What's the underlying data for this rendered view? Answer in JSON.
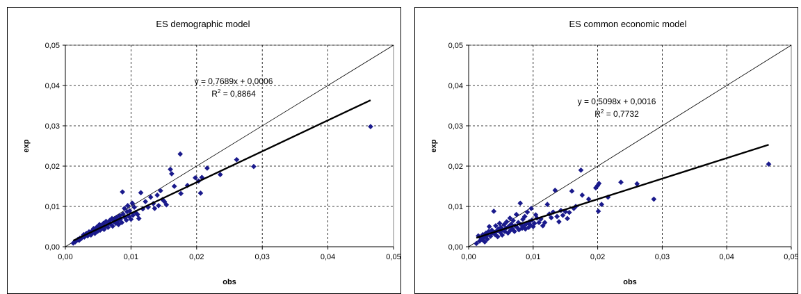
{
  "chart_data": [
    {
      "type": "scatter",
      "title": "ES demographic model",
      "xlabel": "obs",
      "ylabel": "exp",
      "xlim": [
        0,
        0.05
      ],
      "ylim": [
        0,
        0.05
      ],
      "x_ticks": [
        "0,00",
        "0,01",
        "0,02",
        "0,03",
        "0,04",
        "0,05"
      ],
      "y_ticks": [
        "0,00",
        "0,01",
        "0,02",
        "0,03",
        "0,04",
        "0,05"
      ],
      "grid": true,
      "marker_color": "#1a1a8c",
      "reference_line": "y = x",
      "trendline": {
        "slope": 0.7689,
        "intercept": 0.0006,
        "x_range": [
          0.0012,
          0.0465
        ]
      },
      "equation": "y = 0,7689x + 0,0006",
      "r_squared": "R",
      "r_squared_sup": "2",
      "r_squared_value": " = 0,8864",
      "points": [
        [
          0.0012,
          0.0009
        ],
        [
          0.0015,
          0.0012
        ],
        [
          0.0017,
          0.0015
        ],
        [
          0.0019,
          0.0018
        ],
        [
          0.0021,
          0.0016
        ],
        [
          0.0022,
          0.0021
        ],
        [
          0.0024,
          0.002
        ],
        [
          0.0025,
          0.0023
        ],
        [
          0.0027,
          0.0026
        ],
        [
          0.0028,
          0.003
        ],
        [
          0.0029,
          0.0024
        ],
        [
          0.0031,
          0.0028
        ],
        [
          0.0032,
          0.0033
        ],
        [
          0.0034,
          0.0027
        ],
        [
          0.0035,
          0.0031
        ],
        [
          0.0036,
          0.0037
        ],
        [
          0.0038,
          0.0034
        ],
        [
          0.0039,
          0.0029
        ],
        [
          0.0041,
          0.004
        ],
        [
          0.0042,
          0.0036
        ],
        [
          0.0043,
          0.0045
        ],
        [
          0.0045,
          0.0033
        ],
        [
          0.0046,
          0.0042
        ],
        [
          0.0048,
          0.0049
        ],
        [
          0.0049,
          0.0038
        ],
        [
          0.005,
          0.0044
        ],
        [
          0.0052,
          0.0055
        ],
        [
          0.0053,
          0.0041
        ],
        [
          0.0055,
          0.0047
        ],
        [
          0.0056,
          0.0052
        ],
        [
          0.0058,
          0.0058
        ],
        [
          0.0059,
          0.0043
        ],
        [
          0.0061,
          0.005
        ],
        [
          0.0062,
          0.0063
        ],
        [
          0.0064,
          0.0054
        ],
        [
          0.0065,
          0.0048
        ],
        [
          0.0066,
          0.006
        ],
        [
          0.0068,
          0.0066
        ],
        [
          0.0069,
          0.0056
        ],
        [
          0.0071,
          0.007
        ],
        [
          0.0072,
          0.0051
        ],
        [
          0.0074,
          0.0062
        ],
        [
          0.0075,
          0.0068
        ],
        [
          0.0077,
          0.0058
        ],
        [
          0.0078,
          0.0073
        ],
        [
          0.008,
          0.0064
        ],
        [
          0.0081,
          0.0055
        ],
        [
          0.0083,
          0.0077
        ],
        [
          0.0084,
          0.0069
        ],
        [
          0.0086,
          0.006
        ],
        [
          0.0087,
          0.0136
        ],
        [
          0.0088,
          0.0081
        ],
        [
          0.009,
          0.0095
        ],
        [
          0.0091,
          0.0072
        ],
        [
          0.0093,
          0.0066
        ],
        [
          0.0094,
          0.0087
        ],
        [
          0.0095,
          0.0102
        ],
        [
          0.0097,
          0.0075
        ],
        [
          0.0098,
          0.0089
        ],
        [
          0.01,
          0.0068
        ],
        [
          0.0102,
          0.0108
        ],
        [
          0.0103,
          0.0078
        ],
        [
          0.0105,
          0.0098
        ],
        [
          0.0107,
          0.0085
        ],
        [
          0.011,
          0.008
        ],
        [
          0.0112,
          0.007
        ],
        [
          0.0115,
          0.0134
        ],
        [
          0.0118,
          0.0094
        ],
        [
          0.0122,
          0.0112
        ],
        [
          0.0126,
          0.0098
        ],
        [
          0.013,
          0.0123
        ],
        [
          0.0134,
          0.0107
        ],
        [
          0.0136,
          0.0095
        ],
        [
          0.014,
          0.0128
        ],
        [
          0.0142,
          0.0102
        ],
        [
          0.0145,
          0.0139
        ],
        [
          0.0148,
          0.0117
        ],
        [
          0.0151,
          0.0112
        ],
        [
          0.0154,
          0.0104
        ],
        [
          0.016,
          0.0192
        ],
        [
          0.0162,
          0.0181
        ],
        [
          0.0166,
          0.015
        ],
        [
          0.0175,
          0.023
        ],
        [
          0.0176,
          0.0132
        ],
        [
          0.0186,
          0.0152
        ],
        [
          0.0198,
          0.0171
        ],
        [
          0.0203,
          0.0163
        ],
        [
          0.0206,
          0.0133
        ],
        [
          0.0208,
          0.0172
        ],
        [
          0.0216,
          0.0195
        ],
        [
          0.0236,
          0.0179
        ],
        [
          0.0261,
          0.0216
        ],
        [
          0.0287,
          0.0199
        ],
        [
          0.0465,
          0.0298
        ]
      ]
    },
    {
      "type": "scatter",
      "title": "ES common economic model",
      "xlabel": "obs",
      "ylabel": "exp",
      "xlim": [
        0,
        0.05
      ],
      "ylim": [
        0,
        0.05
      ],
      "x_ticks": [
        "0,00",
        "0,01",
        "0,02",
        "0,03",
        "0,04",
        "0,05"
      ],
      "y_ticks": [
        "0,00",
        "0,01",
        "0,02",
        "0,03",
        "0,04",
        "0,05"
      ],
      "grid": true,
      "marker_color": "#1a1a8c",
      "reference_line": "y = x",
      "trendline": {
        "slope": 0.5098,
        "intercept": 0.0016,
        "x_range": [
          0.0012,
          0.0465
        ]
      },
      "equation": "y = 0,5098x + 0,0016",
      "r_squared": "R",
      "r_squared_sup": "2",
      "r_squared_value": " = 0,7732",
      "points": [
        [
          0.0012,
          0.0008
        ],
        [
          0.0015,
          0.0027
        ],
        [
          0.0017,
          0.0014
        ],
        [
          0.0019,
          0.0022
        ],
        [
          0.0021,
          0.0018
        ],
        [
          0.0022,
          0.003
        ],
        [
          0.0024,
          0.0024
        ],
        [
          0.0025,
          0.0012
        ],
        [
          0.0027,
          0.0034
        ],
        [
          0.0028,
          0.0028
        ],
        [
          0.0029,
          0.0019
        ],
        [
          0.0031,
          0.0038
        ],
        [
          0.0032,
          0.005
        ],
        [
          0.0034,
          0.0026
        ],
        [
          0.0035,
          0.0032
        ],
        [
          0.0036,
          0.0041
        ],
        [
          0.0038,
          0.0035
        ],
        [
          0.0039,
          0.0088
        ],
        [
          0.0041,
          0.003
        ],
        [
          0.0042,
          0.0052
        ],
        [
          0.0043,
          0.0038
        ],
        [
          0.0045,
          0.0025
        ],
        [
          0.0046,
          0.0044
        ],
        [
          0.0048,
          0.0058
        ],
        [
          0.0049,
          0.0036
        ],
        [
          0.005,
          0.0048
        ],
        [
          0.0052,
          0.0029
        ],
        [
          0.0053,
          0.0042
        ],
        [
          0.0055,
          0.0055
        ],
        [
          0.0056,
          0.0038
        ],
        [
          0.0058,
          0.0046
        ],
        [
          0.0059,
          0.0062
        ],
        [
          0.0061,
          0.0034
        ],
        [
          0.0062,
          0.005
        ],
        [
          0.0064,
          0.0071
        ],
        [
          0.0065,
          0.0041
        ],
        [
          0.0066,
          0.0056
        ],
        [
          0.0068,
          0.0044
        ],
        [
          0.0069,
          0.0065
        ],
        [
          0.0071,
          0.0038
        ],
        [
          0.0072,
          0.0052
        ],
        [
          0.0074,
          0.008
        ],
        [
          0.0075,
          0.0048
        ],
        [
          0.0077,
          0.006
        ],
        [
          0.0078,
          0.0042
        ],
        [
          0.008,
          0.0108
        ],
        [
          0.0081,
          0.0055
        ],
        [
          0.0083,
          0.0046
        ],
        [
          0.0084,
          0.0068
        ],
        [
          0.0086,
          0.0052
        ],
        [
          0.0087,
          0.0075
        ],
        [
          0.0088,
          0.0044
        ],
        [
          0.009,
          0.0058
        ],
        [
          0.0091,
          0.0086
        ],
        [
          0.0093,
          0.0048
        ],
        [
          0.0094,
          0.0062
        ],
        [
          0.0095,
          0.0055
        ],
        [
          0.0097,
          0.0095
        ],
        [
          0.0098,
          0.0066
        ],
        [
          0.01,
          0.005
        ],
        [
          0.0102,
          0.0058
        ],
        [
          0.0104,
          0.0079
        ],
        [
          0.0106,
          0.0071
        ],
        [
          0.0109,
          0.006
        ],
        [
          0.0112,
          0.0069
        ],
        [
          0.0115,
          0.0052
        ],
        [
          0.0118,
          0.006
        ],
        [
          0.0122,
          0.0105
        ],
        [
          0.0125,
          0.0081
        ],
        [
          0.0128,
          0.0072
        ],
        [
          0.0131,
          0.0086
        ],
        [
          0.0134,
          0.014
        ],
        [
          0.0137,
          0.0075
        ],
        [
          0.014,
          0.0062
        ],
        [
          0.0143,
          0.009
        ],
        [
          0.0146,
          0.0078
        ],
        [
          0.015,
          0.0087
        ],
        [
          0.0153,
          0.007
        ],
        [
          0.0156,
          0.0085
        ],
        [
          0.016,
          0.0138
        ],
        [
          0.0163,
          0.0095
        ],
        [
          0.0166,
          0.01
        ],
        [
          0.0174,
          0.019
        ],
        [
          0.0176,
          0.0128
        ],
        [
          0.0186,
          0.0118
        ],
        [
          0.0197,
          0.0146
        ],
        [
          0.02,
          0.0152
        ],
        [
          0.0201,
          0.0088
        ],
        [
          0.0202,
          0.0157
        ],
        [
          0.0206,
          0.0105
        ],
        [
          0.0216,
          0.0123
        ],
        [
          0.0236,
          0.016
        ],
        [
          0.0261,
          0.0156
        ],
        [
          0.0287,
          0.0118
        ],
        [
          0.0465,
          0.0205
        ]
      ]
    }
  ]
}
